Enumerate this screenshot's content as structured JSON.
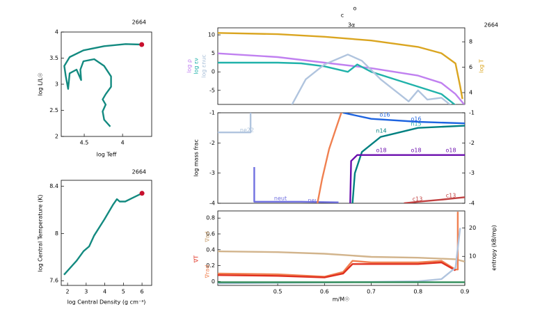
{
  "chart_data": [
    {
      "type": "line",
      "title": "2664",
      "xlabel": "log Teff",
      "ylabel": [
        {
          "text": "log L/L☉",
          "color": "#000000"
        }
      ],
      "xlim": [
        4.8,
        3.62
      ],
      "xticks": [
        4.5,
        4
      ],
      "ylim": [
        2,
        4.0
      ],
      "yticks": [
        2,
        2.5,
        3,
        3.5,
        4
      ],
      "end_marker_color": "#c8102e",
      "series": [
        {
          "color": "#138a80",
          "x": [
            4.16,
            4.24,
            4.26,
            4.22,
            4.26,
            4.22,
            4.15,
            4.15,
            4.24,
            4.37,
            4.51,
            4.55,
            4.54,
            4.6,
            4.69,
            4.71,
            4.74,
            4.76,
            4.69,
            4.51,
            4.24,
            3.96,
            3.75
          ],
          "values": [
            2.19,
            2.32,
            2.48,
            2.61,
            2.71,
            2.81,
            2.95,
            3.15,
            3.35,
            3.48,
            3.44,
            3.28,
            3.08,
            3.28,
            3.21,
            2.91,
            3.15,
            3.35,
            3.52,
            3.65,
            3.73,
            3.77,
            3.76
          ]
        }
      ]
    },
    {
      "type": "line",
      "title": "2664",
      "xlabel": "log Central Density (g cm⁻³)",
      "ylabel": [
        {
          "text": "log Central Temperature (K)",
          "color": "#000000"
        }
      ],
      "xlim": [
        1.66,
        6.52
      ],
      "xticks": [
        2,
        3,
        4,
        5,
        6
      ],
      "ylim": [
        7.56,
        8.45
      ],
      "yticks": [
        7.6,
        8,
        8.4
      ],
      "end_marker_color": "#c8102e",
      "series": [
        {
          "color": "#138a80",
          "x": [
            1.81,
            2.49,
            2.86,
            3.16,
            3.42,
            3.98,
            4.43,
            4.65,
            4.8,
            5.1,
            5.48,
            6.0
          ],
          "values": [
            7.65,
            7.77,
            7.85,
            7.89,
            7.98,
            8.12,
            8.24,
            8.29,
            8.27,
            8.27,
            8.3,
            8.34
          ]
        }
      ]
    },
    {
      "type": "line",
      "title": "2664",
      "ylabel": [
        {
          "text": "log ρ",
          "color": "#c080f0"
        },
        {
          "text": "log εν",
          "color": "#20b2aa"
        },
        {
          "text": "log εnuc",
          "color": "#a8bfd8"
        }
      ],
      "y2label": [
        {
          "text": "log T",
          "color": "#daa520"
        }
      ],
      "xlim": [
        0.372,
        0.9
      ],
      "ylim": [
        -8.8,
        11.9
      ],
      "yticks": [
        -5,
        0,
        5,
        10
      ],
      "y2lim": [
        3.07,
        9.1
      ],
      "y2ticks": [
        4,
        6,
        8
      ],
      "annotations": [
        {
          "text": "c",
          "color": "#000000"
        },
        {
          "text": "o",
          "color": "#000000"
        },
        {
          "text": "3α",
          "color": "#000000"
        }
      ],
      "series": [
        {
          "color": "#c080f0",
          "x": [
            0.372,
            0.5,
            0.6,
            0.7,
            0.8,
            0.85,
            0.88,
            0.9
          ],
          "values": [
            5,
            4,
            2.5,
            1,
            -1,
            -3,
            -6,
            -9
          ]
        },
        {
          "color": "#daa520",
          "axis": "y2",
          "x": [
            0.372,
            0.5,
            0.6,
            0.7,
            0.8,
            0.85,
            0.88,
            0.89,
            0.895
          ],
          "values": [
            8.7,
            8.6,
            8.4,
            8.1,
            7.6,
            7.1,
            6.3,
            4.5,
            3.5
          ]
        },
        {
          "color": "#20b2aa",
          "x": [
            0.372,
            0.5,
            0.55,
            0.6,
            0.65,
            0.67,
            0.7,
            0.75,
            0.8,
            0.85,
            0.88
          ],
          "values": [
            2.5,
            2.5,
            2.3,
            1.5,
            0,
            2,
            0,
            -2,
            -4,
            -6,
            -9
          ]
        },
        {
          "color": "#b0c4de",
          "x": [
            0.53,
            0.56,
            0.6,
            0.65,
            0.68,
            0.72,
            0.76,
            0.78,
            0.8,
            0.82,
            0.85,
            0.87
          ],
          "values": [
            -9,
            -2,
            2,
            4.7,
            3,
            -2,
            -6,
            -8,
            -5,
            -7.5,
            -7,
            -9
          ]
        }
      ]
    },
    {
      "type": "line",
      "ylabel": [
        {
          "text": "log mass frac",
          "color": "#000000"
        }
      ],
      "mirror_yticks": true,
      "xlim": [
        0.372,
        0.9
      ],
      "ylim": [
        -4,
        -1
      ],
      "yticks": [
        -4,
        -3,
        -2,
        -1
      ],
      "annotations": [
        {
          "text": "ne22",
          "color": "#a8bfd8"
        },
        {
          "text": "neut",
          "color": "#7070e0"
        },
        {
          "text": "neu",
          "color": "#7070e0"
        },
        {
          "text": "o16",
          "color": "#1e64e0"
        },
        {
          "text": "o16",
          "color": "#1e64e0"
        },
        {
          "text": "n15",
          "color": "#20b2aa"
        },
        {
          "text": "n14",
          "color": "#008080"
        },
        {
          "text": "o18",
          "color": "#6a0dad"
        },
        {
          "text": "o18",
          "color": "#6a0dad"
        },
        {
          "text": "o18",
          "color": "#6a0dad"
        },
        {
          "text": "c13",
          "color": "#c04040"
        },
        {
          "text": "c13",
          "color": "#c04040"
        }
      ],
      "series": [
        {
          "color": "#b0c4de",
          "x": [
            0.372,
            0.442,
            0.442
          ],
          "values": [
            -1.65,
            -1.65,
            -1.0
          ]
        },
        {
          "color": "#7070e0",
          "x": [
            0.45,
            0.45,
            0.55,
            0.63
          ],
          "values": [
            -2.8,
            -3.95,
            -3.95,
            -3.97
          ]
        },
        {
          "color": "#f08050",
          "x": [
            0.585,
            0.595,
            0.61,
            0.625,
            0.636
          ],
          "values": [
            -4,
            -3.2,
            -2.2,
            -1.5,
            -1
          ]
        },
        {
          "color": "#1e64e0",
          "x": [
            0.64,
            0.7,
            0.8,
            0.9
          ],
          "values": [
            -1,
            -1.2,
            -1.3,
            -1.35
          ]
        },
        {
          "color": "#008080",
          "x": [
            0.66,
            0.665,
            0.68,
            0.72,
            0.8,
            0.9
          ],
          "values": [
            -4,
            -3,
            -2.3,
            -1.8,
            -1.5,
            -1.43
          ]
        },
        {
          "color": "#6a0dad",
          "x": [
            0.655,
            0.657,
            0.67,
            0.9
          ],
          "values": [
            -4,
            -2.6,
            -2.4,
            -2.4
          ]
        },
        {
          "color": "#c04040",
          "x": [
            0.77,
            0.8,
            0.85,
            0.9
          ],
          "values": [
            -4,
            -3.95,
            -3.88,
            -3.8
          ]
        }
      ]
    },
    {
      "type": "line",
      "xlabel": "m/M☉",
      "ylabel": [
        {
          "text": "∇T",
          "color": "#e03020"
        },
        {
          "text": "∇ad",
          "color": "#c8a070"
        },
        {
          "text": "∇rad",
          "color": "#f08050"
        }
      ],
      "y2label": [
        {
          "text": "entropy (kB/mp)",
          "color": "#000000"
        }
      ],
      "xlim": [
        0.372,
        0.9
      ],
      "xticks": [
        0.5,
        0.6,
        0.7,
        0.8,
        0.9
      ],
      "ylim": [
        -0.05,
        0.89
      ],
      "yticks": [
        0,
        0.2,
        0.4,
        0.6,
        0.8
      ],
      "y2lim": [
        -0.24,
        26
      ],
      "y2ticks": [
        10,
        20
      ],
      "series": [
        {
          "color": "#d2b48c",
          "x": [
            0.372,
            0.5,
            0.6,
            0.65,
            0.7,
            0.8,
            0.88,
            0.9
          ],
          "values": [
            0.38,
            0.37,
            0.35,
            0.33,
            0.31,
            0.3,
            0.28,
            0.25
          ]
        },
        {
          "color": "#f08050",
          "x": [
            0.372,
            0.5,
            0.6,
            0.64,
            0.66,
            0.7,
            0.8,
            0.85,
            0.88,
            0.885,
            0.885
          ],
          "values": [
            0.1,
            0.09,
            0.06,
            0.12,
            0.26,
            0.24,
            0.24,
            0.26,
            0.15,
            0.15,
            0.88
          ]
        },
        {
          "color": "#e03020",
          "x": [
            0.372,
            0.5,
            0.6,
            0.64,
            0.66,
            0.7,
            0.8,
            0.85,
            0.88
          ],
          "values": [
            0.08,
            0.07,
            0.05,
            0.1,
            0.22,
            0.22,
            0.22,
            0.24,
            0.14
          ]
        },
        {
          "color": "#b0c4de",
          "axis": "y2",
          "x": [
            0.372,
            0.6,
            0.8,
            0.85,
            0.88,
            0.89
          ],
          "values": [
            0.5,
            0.8,
            1.2,
            2,
            6,
            20
          ]
        },
        {
          "color": "#2e8b57",
          "x": [
            0.372,
            0.9
          ],
          "values": [
            -0.01,
            -0.01
          ]
        }
      ]
    }
  ]
}
